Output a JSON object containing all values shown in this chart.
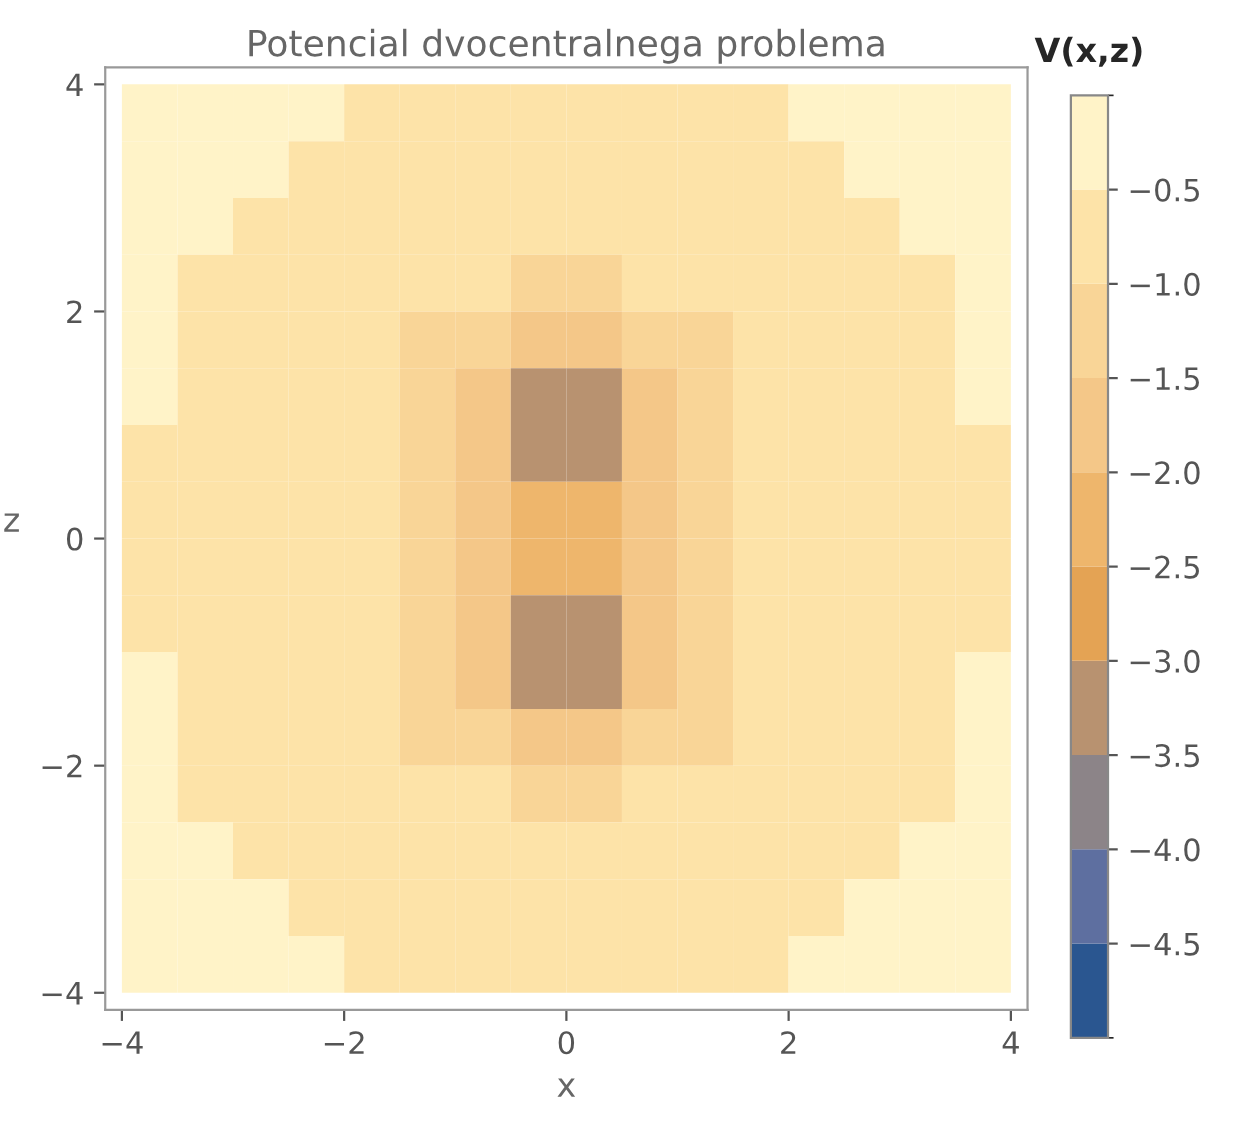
{
  "chart_data": {
    "type": "heatmap",
    "title": "Potencial dvocentralnega problema",
    "xlabel": "x",
    "ylabel": "z",
    "clabel": "V(x,z)",
    "x": [
      -3.75,
      -3.25,
      -2.75,
      -2.25,
      -1.75,
      -1.25,
      -0.75,
      -0.25,
      0.25,
      0.75,
      1.25,
      1.75,
      2.25,
      2.75,
      3.25,
      3.75
    ],
    "y": [
      3.75,
      3.25,
      2.75,
      2.25,
      1.75,
      1.25,
      0.75,
      0.25,
      -0.25,
      -0.75,
      -1.25,
      -1.75,
      -2.25,
      -2.75,
      -3.25,
      -3.75
    ],
    "cells": [
      [
        -0.25,
        -0.25,
        -0.25,
        -0.25,
        -0.75,
        -0.75,
        -0.75,
        -0.75,
        -0.75,
        -0.75,
        -0.75,
        -0.75,
        -0.25,
        -0.25,
        -0.25,
        -0.25
      ],
      [
        -0.25,
        -0.25,
        -0.25,
        -0.75,
        -0.75,
        -0.75,
        -0.75,
        -0.75,
        -0.75,
        -0.75,
        -0.75,
        -0.75,
        -0.75,
        -0.25,
        -0.25,
        -0.25
      ],
      [
        -0.25,
        -0.25,
        -0.75,
        -0.75,
        -0.75,
        -0.75,
        -0.75,
        -0.75,
        -0.75,
        -0.75,
        -0.75,
        -0.75,
        -0.75,
        -0.75,
        -0.25,
        -0.25
      ],
      [
        -0.25,
        -0.75,
        -0.75,
        -0.75,
        -0.75,
        -0.75,
        -0.75,
        -1.25,
        -1.25,
        -0.75,
        -0.75,
        -0.75,
        -0.75,
        -0.75,
        -0.75,
        -0.25
      ],
      [
        -0.25,
        -0.75,
        -0.75,
        -0.75,
        -0.75,
        -1.25,
        -1.25,
        -1.75,
        -1.75,
        -1.25,
        -1.25,
        -0.75,
        -0.75,
        -0.75,
        -0.75,
        -0.25
      ],
      [
        -0.25,
        -0.75,
        -0.75,
        -0.75,
        -0.75,
        -1.25,
        -1.75,
        -3.25,
        -3.25,
        -1.75,
        -1.25,
        -0.75,
        -0.75,
        -0.75,
        -0.75,
        -0.25
      ],
      [
        -0.75,
        -0.75,
        -0.75,
        -0.75,
        -0.75,
        -1.25,
        -1.75,
        -3.25,
        -3.25,
        -1.75,
        -1.25,
        -0.75,
        -0.75,
        -0.75,
        -0.75,
        -0.75
      ],
      [
        -0.75,
        -0.75,
        -0.75,
        -0.75,
        -0.75,
        -1.25,
        -1.75,
        -2.25,
        -2.25,
        -1.75,
        -1.25,
        -0.75,
        -0.75,
        -0.75,
        -0.75,
        -0.75
      ],
      [
        -0.75,
        -0.75,
        -0.75,
        -0.75,
        -0.75,
        -1.25,
        -1.75,
        -2.25,
        -2.25,
        -1.75,
        -1.25,
        -0.75,
        -0.75,
        -0.75,
        -0.75,
        -0.75
      ],
      [
        -0.75,
        -0.75,
        -0.75,
        -0.75,
        -0.75,
        -1.25,
        -1.75,
        -3.25,
        -3.25,
        -1.75,
        -1.25,
        -0.75,
        -0.75,
        -0.75,
        -0.75,
        -0.75
      ],
      [
        -0.25,
        -0.75,
        -0.75,
        -0.75,
        -0.75,
        -1.25,
        -1.75,
        -3.25,
        -3.25,
        -1.75,
        -1.25,
        -0.75,
        -0.75,
        -0.75,
        -0.75,
        -0.25
      ],
      [
        -0.25,
        -0.75,
        -0.75,
        -0.75,
        -0.75,
        -1.25,
        -1.25,
        -1.75,
        -1.75,
        -1.25,
        -1.25,
        -0.75,
        -0.75,
        -0.75,
        -0.75,
        -0.25
      ],
      [
        -0.25,
        -0.75,
        -0.75,
        -0.75,
        -0.75,
        -0.75,
        -0.75,
        -1.25,
        -1.25,
        -0.75,
        -0.75,
        -0.75,
        -0.75,
        -0.75,
        -0.75,
        -0.25
      ],
      [
        -0.25,
        -0.25,
        -0.75,
        -0.75,
        -0.75,
        -0.75,
        -0.75,
        -0.75,
        -0.75,
        -0.75,
        -0.75,
        -0.75,
        -0.75,
        -0.75,
        -0.25,
        -0.25
      ],
      [
        -0.25,
        -0.25,
        -0.25,
        -0.75,
        -0.75,
        -0.75,
        -0.75,
        -0.75,
        -0.75,
        -0.75,
        -0.75,
        -0.75,
        -0.75,
        -0.25,
        -0.25,
        -0.25
      ],
      [
        -0.25,
        -0.25,
        -0.25,
        -0.25,
        -0.75,
        -0.75,
        -0.75,
        -0.75,
        -0.75,
        -0.75,
        -0.75,
        -0.75,
        -0.25,
        -0.25,
        -0.25,
        -0.25
      ]
    ],
    "colors": [
      "#2a5690",
      "#5e6fa0",
      "#8c8488",
      "#b89270",
      "#e4a354",
      "#eeb66c",
      "#f4c788",
      "#f9d597",
      "#fde3a8",
      "#fff3c8"
    ],
    "clim": [
      -5,
      0
    ],
    "cticks": [
      {
        "value": -0.5,
        "label": "−0.5"
      },
      {
        "value": -1,
        "label": "−1.0"
      },
      {
        "value": -1.5,
        "label": "−1.5"
      },
      {
        "value": -2,
        "label": "−2.0"
      },
      {
        "value": -2.5,
        "label": "−2.5"
      },
      {
        "value": -3,
        "label": "−3.0"
      },
      {
        "value": -3.5,
        "label": "−3.5"
      },
      {
        "value": -4,
        "label": "−4.0"
      },
      {
        "value": -4.5,
        "label": "−4.5"
      }
    ],
    "xlim": [
      -4.15,
      4.15
    ],
    "ylim": [
      -4.15,
      4.15
    ],
    "xticks": [
      {
        "value": -4,
        "label": "−4"
      },
      {
        "value": -2,
        "label": "−2"
      },
      0,
      2,
      4
    ],
    "yticks": [
      {
        "value": -4,
        "label": "−4"
      },
      {
        "value": -2,
        "label": "−2"
      },
      0,
      2,
      4
    ]
  }
}
